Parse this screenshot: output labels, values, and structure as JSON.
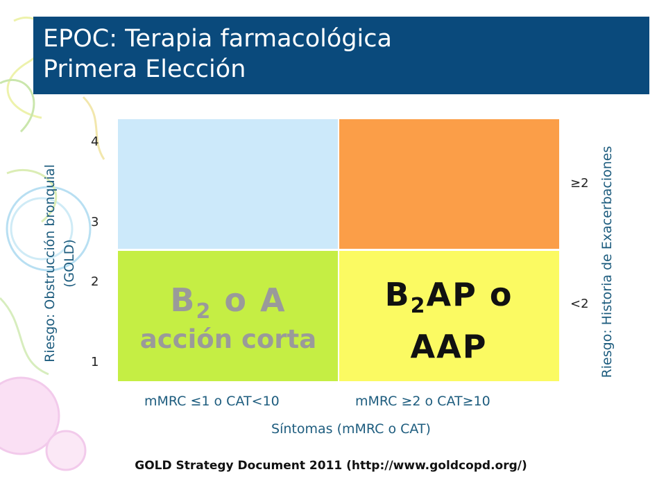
{
  "title": {
    "line1": "EPOC: Terapia farmacológica",
    "line2": "Primera Elección"
  },
  "quadrants": {
    "top_left": {
      "color": "#cce9fa"
    },
    "top_right": {
      "color": "#fb9e48"
    },
    "bottom_left": {
      "color": "#c5ee44",
      "main_prefix": "B",
      "main_sub": "2",
      "main_suffix": " o A",
      "subtitle": "acción corta"
    },
    "bottom_right": {
      "color": "#fbfa62",
      "main_prefix": "B",
      "main_sub": "2",
      "main_suffix": "AP o",
      "line2": "AAP"
    }
  },
  "left_axis": {
    "label_line1": "Riesgo: Obstrucción bronquial",
    "label_line2": "(GOLD)",
    "ticks": [
      "4",
      "3",
      "2",
      "1"
    ]
  },
  "right_axis": {
    "label": "Riesgo: Historia de Exacerbaciones",
    "ticks": [
      "≥2",
      "<2"
    ]
  },
  "x_axis": {
    "categories": [
      "mMRC ≤1 o CAT<10",
      "mMRC ≥2 o CAT≥10"
    ],
    "title": "Síntomas (mMRC o CAT)"
  },
  "source": "GOLD Strategy Document 2011 (http://www.goldcopd.org/)"
}
